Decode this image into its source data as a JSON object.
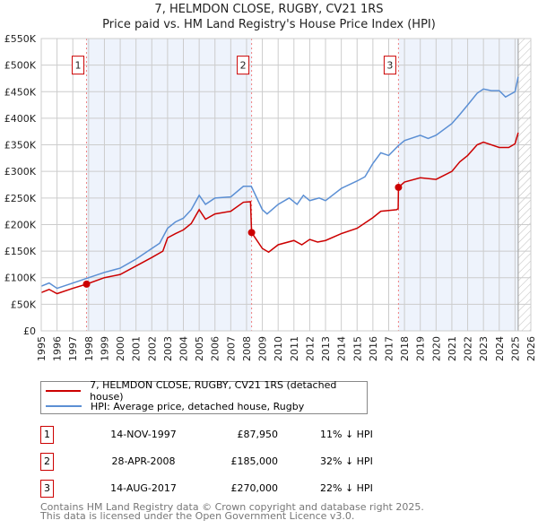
{
  "chart_data": {
    "type": "line",
    "title": "7, HELMDON CLOSE, RUGBY, CV21 1RS",
    "subtitle": "Price paid vs. HM Land Registry's House Price Index (HPI)",
    "xlim": [
      1995,
      2026
    ],
    "ylim": [
      0,
      550000
    ],
    "x_ticks": [
      "1995",
      "1996",
      "1997",
      "1998",
      "1999",
      "2000",
      "2001",
      "2002",
      "2003",
      "2004",
      "2005",
      "2006",
      "2007",
      "2008",
      "2009",
      "2010",
      "2011",
      "2012",
      "2013",
      "2014",
      "2015",
      "2016",
      "2017",
      "2018",
      "2019",
      "2020",
      "2021",
      "2022",
      "2023",
      "2024",
      "2025",
      "2026"
    ],
    "y_ticks": [
      "£0",
      "£50K",
      "£100K",
      "£150K",
      "£200K",
      "£250K",
      "£300K",
      "£350K",
      "£400K",
      "£450K",
      "£500K",
      "£550K"
    ],
    "grid": true,
    "series": [
      {
        "name": "7, HELMDON CLOSE, RUGBY, CV21 1RS (detached house)",
        "color": "#cc0000",
        "x": [
          1995,
          1995.5,
          1996,
          1997,
          1997.87,
          1999,
          2000,
          2001,
          2002,
          2002.7,
          2003,
          2003.5,
          2004,
          2004.5,
          2005,
          2005.4,
          2006,
          2007,
          2007.8,
          2008.25,
          2008.32,
          2009,
          2009.4,
          2010,
          2011,
          2011.5,
          2012,
          2012.5,
          2013,
          2014,
          2015,
          2016,
          2016.5,
          2017.5,
          2017.6,
          2017.62,
          2018,
          2019,
          2020,
          2021,
          2021.5,
          2022,
          2022.6,
          2023,
          2024,
          2024.6,
          2025,
          2025.2
        ],
        "y": [
          72000,
          78000,
          70000,
          80000,
          87950,
          100000,
          106000,
          122000,
          138000,
          150000,
          175000,
          183000,
          190000,
          202000,
          228000,
          210000,
          220000,
          225000,
          242000,
          243000,
          185000,
          155000,
          148000,
          162000,
          170000,
          162000,
          172000,
          167000,
          170000,
          183000,
          193000,
          213000,
          225000,
          228000,
          230000,
          270000,
          280000,
          288000,
          285000,
          300000,
          318000,
          330000,
          350000,
          355000,
          345000,
          345000,
          352000,
          373000
        ]
      },
      {
        "name": "HPI: Average price, detached house, Rugby",
        "color": "#5b8fd4",
        "x": [
          1995,
          1995.5,
          1996,
          1997,
          1997.9,
          1999,
          2000,
          2001,
          2002,
          2002.5,
          2003,
          2003.5,
          2004,
          2004.5,
          2005,
          2005.4,
          2006,
          2007,
          2007.8,
          2008.3,
          2009,
          2009.3,
          2010,
          2010.7,
          2011.2,
          2011.6,
          2012,
          2012.6,
          2013,
          2014,
          2015,
          2015.5,
          2016,
          2016.5,
          2017,
          2017.6,
          2018,
          2019,
          2019.5,
          2020,
          2021,
          2021.5,
          2022,
          2022.6,
          2023,
          2023.5,
          2024,
          2024.4,
          2025,
          2025.2
        ],
        "y": [
          84000,
          90000,
          80000,
          90000,
          99000,
          110000,
          118000,
          135000,
          155000,
          165000,
          193000,
          205000,
          212000,
          228000,
          255000,
          238000,
          250000,
          252000,
          272000,
          272000,
          228000,
          220000,
          238000,
          250000,
          238000,
          255000,
          245000,
          250000,
          245000,
          268000,
          282000,
          290000,
          315000,
          335000,
          330000,
          348000,
          358000,
          368000,
          362000,
          368000,
          390000,
          407000,
          425000,
          447000,
          455000,
          452000,
          452000,
          440000,
          450000,
          478000
        ]
      }
    ],
    "sales": [
      {
        "label": "1",
        "x": 1997.87,
        "y": 87950,
        "date": "14-NOV-1997",
        "price": "£87,950",
        "hpi": "11% ↓ HPI"
      },
      {
        "label": "2",
        "x": 2008.32,
        "y": 185000,
        "date": "28-APR-2008",
        "price": "£185,000",
        "hpi": "32% ↓ HPI"
      },
      {
        "label": "3",
        "x": 2017.62,
        "y": 270000,
        "date": "14-AUG-2017",
        "price": "£270,000",
        "hpi": "22% ↓ HPI"
      }
    ],
    "data_end_x": 2025.2,
    "legend_placement": "below"
  },
  "footer": {
    "line1": "Contains HM Land Registry data © Crown copyright and database right 2025.",
    "line2": "This data is licensed under the Open Government Licence v3.0."
  }
}
